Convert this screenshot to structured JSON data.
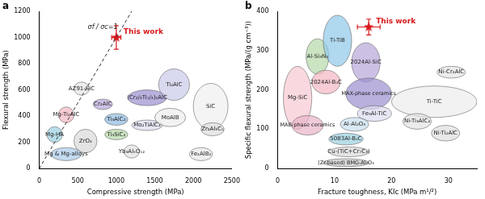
{
  "chart_data": [
    {
      "panel": "a",
      "type": "scatter",
      "x_label": "Compressive strength (MPa)",
      "y_label": "Flexural strength (MPa)",
      "xlim": [
        0,
        2500
      ],
      "xticks": [
        0,
        500,
        1000,
        1500,
        2000,
        2500
      ],
      "ylim": [
        0,
        1200
      ],
      "yticks": [
        0,
        200,
        400,
        600,
        800,
        1000,
        1200
      ],
      "grid": false,
      "series": [
        {
          "name": "This work",
          "color": "#d7191c",
          "marker": "star",
          "x": [
            1000
          ],
          "y": [
            1000
          ],
          "x_error": [
            60
          ],
          "y_error": [
            90
          ]
        }
      ],
      "reference_line": {
        "label": "σf / σc=1",
        "x": [
          0,
          1200
        ],
        "y": [
          0,
          1200
        ],
        "line_style": "dashed",
        "color": "#333333"
      },
      "regions": [
        {
          "name": "Mg & Mg-alloys",
          "color": "#a9cbe8",
          "x": [
            150,
            550
          ],
          "y": [
            60,
            160
          ]
        },
        {
          "name": "Mg-HA",
          "color": "#9ad0e0",
          "x": [
            100,
            300
          ],
          "y": [
            200,
            320
          ]
        },
        {
          "name": "Mg-Ti₂AlC",
          "color": "#f4b6c2",
          "x": [
            250,
            450
          ],
          "y": [
            350,
            470
          ]
        },
        {
          "name": "ZrO₂",
          "color": "#d9d9d9",
          "x": [
            450,
            750
          ],
          "y": [
            120,
            300
          ]
        },
        {
          "name": "AZ91-SiC",
          "color": "#e6e6e6",
          "x": [
            450,
            650
          ],
          "y": [
            560,
            660
          ]
        },
        {
          "name": "Cr₂AlC",
          "color": "#b7a6d9",
          "x": [
            700,
            950
          ],
          "y": [
            450,
            530
          ]
        },
        {
          "name": "(Cr₂/₃Ti₁/₃)₂AlC",
          "color": "#9b8fd0",
          "x": [
            1150,
            1650
          ],
          "y": [
            480,
            600
          ]
        },
        {
          "name": "Ti₂AlC",
          "color": "#c9c9e8",
          "x": [
            1550,
            1950
          ],
          "y": [
            520,
            760
          ]
        },
        {
          "name": "Ti₃AlC₂",
          "color": "#8fb9e0",
          "x": [
            850,
            1150
          ],
          "y": [
            330,
            420
          ]
        },
        {
          "name": "Ti₃SiC₂",
          "color": "#b5d8a8",
          "x": [
            850,
            1150
          ],
          "y": [
            220,
            300
          ]
        },
        {
          "name": "Mo₂TiAlC₂",
          "color": "#dcdcf0",
          "x": [
            1200,
            1600
          ],
          "y": [
            290,
            370
          ]
        },
        {
          "name": "MoAlB",
          "color": "#ececec",
          "x": [
            1500,
            1900
          ],
          "y": [
            320,
            460
          ]
        },
        {
          "name": "Yb₃Al₅O₁₂",
          "color": "#e3e3e3",
          "x": [
            1100,
            1300
          ],
          "y": [
            80,
            180
          ]
        },
        {
          "name": "SiC",
          "color": "#f0f0f0",
          "x": [
            2000,
            2450
          ],
          "y": [
            300,
            650
          ]
        },
        {
          "name": "Zr₂Al₃C₅",
          "color": "#dedede",
          "x": [
            2100,
            2400
          ],
          "y": [
            250,
            350
          ]
        },
        {
          "name": "Fe₂AlB₂",
          "color": "#e8e8e8",
          "x": [
            1950,
            2250
          ],
          "y": [
            60,
            160
          ]
        }
      ]
    },
    {
      "panel": "b",
      "type": "scatter",
      "x_label": "Fracture toughness, KIc (MPa m¹/²)",
      "y_label": "Specific flexural strength (MPa/(g cm⁻³))",
      "xlim": [
        0,
        35
      ],
      "xticks": [
        0,
        10,
        20,
        30
      ],
      "ylim": [
        0,
        400
      ],
      "yticks": [
        0,
        100,
        200,
        300,
        400
      ],
      "grid": false,
      "series": [
        {
          "name": "This work",
          "color": "#d7191c",
          "marker": "star",
          "x": [
            16
          ],
          "y": [
            360
          ],
          "x_error": [
            2
          ],
          "y_error": [
            20
          ]
        }
      ],
      "regions": [
        {
          "name": "Al-Si₃N₄",
          "color": "#b5d8a8",
          "x": [
            5,
            9
          ],
          "y": [
            240,
            330
          ]
        },
        {
          "name": "Ti-TiB",
          "color": "#8fc7e8",
          "x": [
            8,
            13
          ],
          "y": [
            260,
            390
          ]
        },
        {
          "name": "2024Al-SiC",
          "color": "#b7a6d9",
          "x": [
            13,
            18
          ],
          "y": [
            220,
            320
          ]
        },
        {
          "name": "2024Al-B₄C",
          "color": "#f4b6c2",
          "x": [
            6,
            11
          ],
          "y": [
            190,
            250
          ]
        },
        {
          "name": "MAX-phase ceramics",
          "color": "#9b8fd0",
          "x": [
            12,
            20
          ],
          "y": [
            150,
            230
          ]
        },
        {
          "name": "Mg-SiC",
          "color": "#f6c9d2",
          "x": [
            1,
            6
          ],
          "y": [
            100,
            260
          ]
        },
        {
          "name": "Fe₃Al-TiC",
          "color": "#dcdcf0",
          "x": [
            14,
            20
          ],
          "y": [
            120,
            160
          ]
        },
        {
          "name": "Ti-TiC",
          "color": "#ececec",
          "x": [
            20,
            35
          ],
          "y": [
            130,
            210
          ]
        },
        {
          "name": "Ni-Cr₂AlC",
          "color": "#e6e6e6",
          "x": [
            28,
            33
          ],
          "y": [
            230,
            260
          ]
        },
        {
          "name": "Ni-Ti₃AlC₂",
          "color": "#e3e3e3",
          "x": [
            22,
            27
          ],
          "y": [
            100,
            140
          ]
        },
        {
          "name": "Ni-Ti₂AlC",
          "color": "#dedede",
          "x": [
            27,
            32
          ],
          "y": [
            70,
            110
          ]
        },
        {
          "name": "Al-Al₂O₃",
          "color": "#c9dff0",
          "x": [
            11,
            16
          ],
          "y": [
            95,
            130
          ]
        },
        {
          "name": "5083Al-B₄C",
          "color": "#9ad0e0",
          "x": [
            9,
            15
          ],
          "y": [
            60,
            90
          ]
        },
        {
          "name": "Cu-(TiC+Cr₇C₃)",
          "color": "#d9d9d9",
          "x": [
            9,
            16
          ],
          "y": [
            30,
            55
          ]
        },
        {
          "name": "(Zr-based) BMG-Al₂O₃",
          "color": "#c6c6c6",
          "x": [
            8,
            16
          ],
          "y": [
            5,
            25
          ]
        },
        {
          "name": "MAB-phase ceramics",
          "color": "#e8b4c8",
          "x": [
            2.5,
            8
          ],
          "y": [
            85,
            135
          ]
        }
      ]
    }
  ]
}
